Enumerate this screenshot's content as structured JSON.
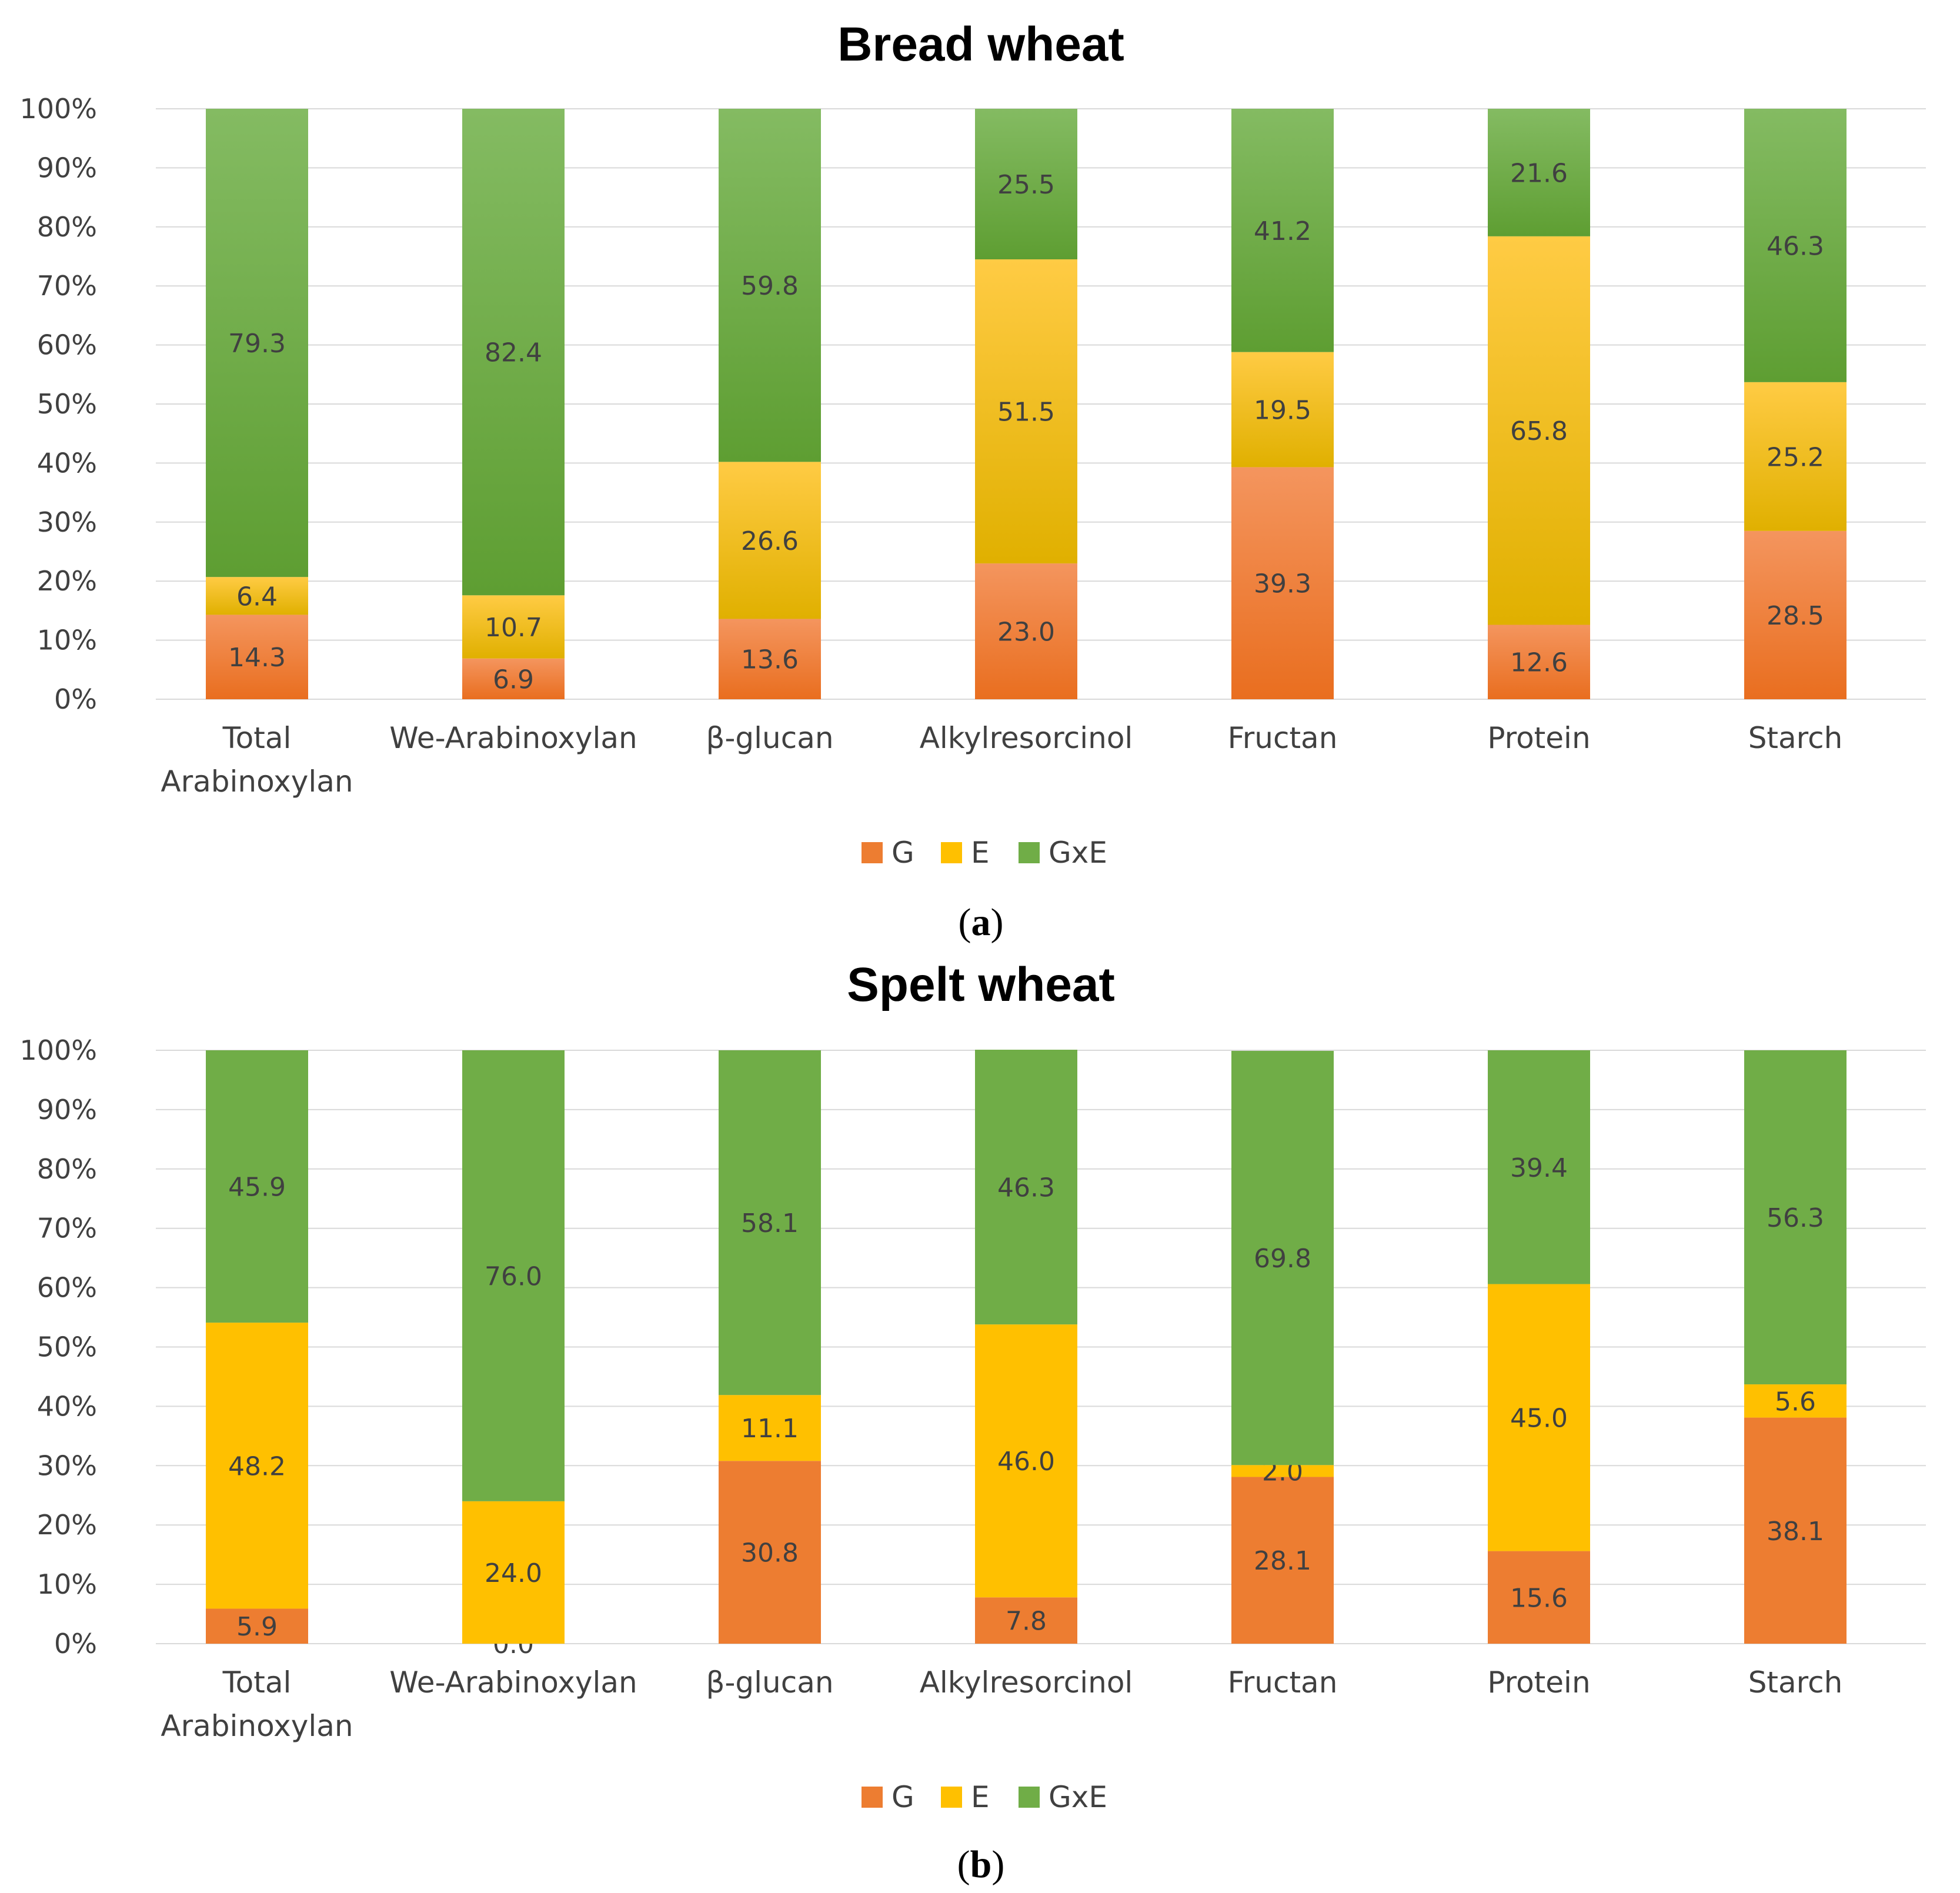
{
  "colors": {
    "G": "#ED7D31",
    "E": "#FFC000",
    "GxE": "#70AD47",
    "grid": "#D9D9D9",
    "text": "#404040"
  },
  "legend": [
    "G",
    "E",
    "GxE"
  ],
  "y_ticks": [
    "0%",
    "10%",
    "20%",
    "30%",
    "40%",
    "50%",
    "60%",
    "70%",
    "80%",
    "90%",
    "100%"
  ],
  "panels": [
    {
      "open": "(",
      "letter": "a",
      "close": ")"
    },
    {
      "open": "(",
      "letter": "b",
      "close": ")"
    }
  ],
  "chart_data": [
    {
      "type": "bar",
      "stacked": true,
      "title": "Bread wheat",
      "categories": [
        [
          "Total",
          "Arabinoxylan"
        ],
        [
          "We-Arabinoxylan"
        ],
        [
          "β-glucan"
        ],
        [
          "Alkylresorcinol"
        ],
        [
          "Fructan"
        ],
        [
          "Protein"
        ],
        [
          "Starch"
        ]
      ],
      "series": [
        {
          "name": "G",
          "values": [
            14.3,
            6.9,
            13.6,
            23.0,
            39.3,
            12.6,
            28.5
          ],
          "labels": [
            "14.3",
            "6.9",
            "13.6",
            "23.0",
            "39.3",
            "12.6",
            "28.5"
          ]
        },
        {
          "name": "E",
          "values": [
            6.4,
            10.7,
            26.6,
            51.5,
            19.5,
            65.8,
            25.2
          ],
          "labels": [
            "6.4",
            "10.7",
            "26.6",
            "51.5",
            "19.5",
            "65.8",
            "25.2"
          ]
        },
        {
          "name": "GxE",
          "values": [
            79.3,
            82.4,
            59.8,
            25.5,
            41.2,
            21.6,
            46.3
          ],
          "labels": [
            "79.3",
            "82.4",
            "59.8",
            "25.5",
            "41.2",
            "21.6",
            "46.3"
          ]
        }
      ],
      "ylim": [
        0,
        100
      ],
      "gradient": true,
      "legend_position": "bottom"
    },
    {
      "type": "bar",
      "stacked": true,
      "title": "Spelt wheat",
      "categories": [
        [
          "Total",
          "Arabinoxylan"
        ],
        [
          "We-Arabinoxylan"
        ],
        [
          "β-glucan"
        ],
        [
          "Alkylresorcinol"
        ],
        [
          "Fructan"
        ],
        [
          "Protein"
        ],
        [
          "Starch"
        ]
      ],
      "series": [
        {
          "name": "G",
          "values": [
            5.9,
            0.0,
            30.8,
            7.8,
            28.1,
            15.6,
            38.1
          ],
          "labels": [
            "5.9",
            "0.0",
            "30.8",
            "7.8",
            "28.1",
            "15.6",
            "38.1"
          ]
        },
        {
          "name": "E",
          "values": [
            48.2,
            24.0,
            11.1,
            46.0,
            2.0,
            45.0,
            5.6
          ],
          "labels": [
            "48.2",
            "24.0",
            "11.1",
            "46.0",
            "2.0",
            "45.0",
            "5.6"
          ]
        },
        {
          "name": "GxE",
          "values": [
            45.9,
            76.0,
            58.1,
            46.3,
            69.8,
            39.4,
            56.3
          ],
          "labels": [
            "45.9",
            "76.0",
            "58.1",
            "46.3",
            "69.8",
            "39.4",
            "56.3"
          ]
        }
      ],
      "ylim": [
        0,
        100
      ],
      "gradient": false,
      "legend_position": "bottom"
    }
  ]
}
